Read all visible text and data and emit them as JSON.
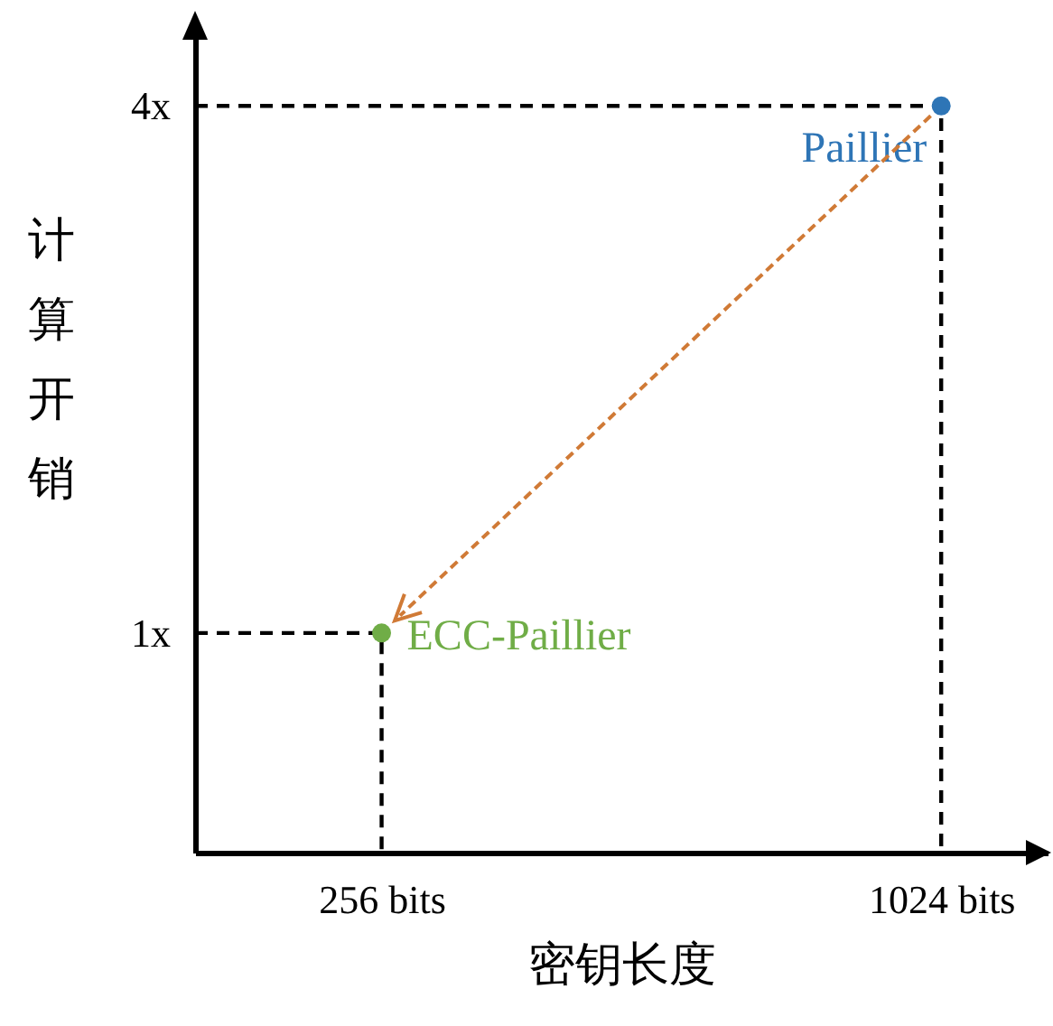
{
  "chart_data": {
    "type": "scatter",
    "xlabel": "密钥长度",
    "ylabel": "计算开销",
    "xlim": [
      0,
      1170
    ],
    "ylim": [
      -0.25,
      4.5
    ],
    "xticks": [
      {
        "value": 256,
        "label": "256 bits"
      },
      {
        "value": 1024,
        "label": "1024 bits"
      }
    ],
    "yticks": [
      {
        "value": 1,
        "label": "1x"
      },
      {
        "value": 4,
        "label": "4x"
      }
    ],
    "series": [
      {
        "name": "Paillier",
        "marker": "circle",
        "color": "#2e75b6",
        "x": [
          1024
        ],
        "values": [
          4
        ]
      },
      {
        "name": "ECC-Paillier",
        "marker": "circle",
        "color": "#70ad47",
        "x": [
          256
        ],
        "values": [
          1
        ]
      },
      {
        "type": "line",
        "line_style": "dashed",
        "color": "#000000",
        "x": [
          0,
          1024,
          1024
        ],
        "values": [
          4,
          4,
          -0.25
        ]
      },
      {
        "type": "line",
        "line_style": "dashed",
        "color": "#000000",
        "x": [
          0,
          256,
          256
        ],
        "values": [
          1,
          1,
          -0.25
        ]
      }
    ]
  }
}
